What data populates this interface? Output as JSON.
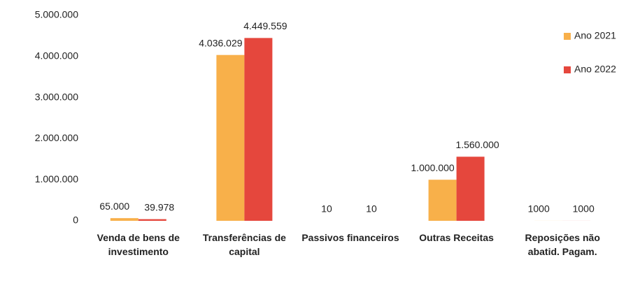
{
  "chart_data": {
    "type": "bar",
    "categories": [
      "Venda de bens de investimento",
      "Transferências de capital",
      "Passivos financeiros",
      "Outras Receitas",
      "Reposições não abatid. Pagam."
    ],
    "series": [
      {
        "name": "Ano 2021",
        "color": "#f8b04a",
        "values": [
          65000,
          4036029,
          10,
          1000000,
          1000
        ],
        "value_labels": [
          "65.000",
          "4.036.029",
          "10",
          "1.000.000",
          "1000"
        ]
      },
      {
        "name": "Ano 2022",
        "color": "#e5473d",
        "values": [
          39978,
          4449559,
          10,
          1560000,
          1000
        ],
        "value_labels": [
          "39.978",
          "4.449.559",
          "10",
          "1.560.000",
          "1000"
        ]
      }
    ],
    "ylim": [
      0,
      5000000
    ],
    "yticks": [
      0,
      {
        "value": 1000000,
        "label": "1.000.000"
      },
      {
        "value": 2000000,
        "label": "2.000.000"
      },
      {
        "value": 3000000,
        "label": "3.000.000"
      },
      {
        "value": 4000000,
        "label": "4.000.000"
      },
      {
        "value": 5000000,
        "label": "5.000.000"
      }
    ],
    "grid": false,
    "legend": "top-right"
  }
}
